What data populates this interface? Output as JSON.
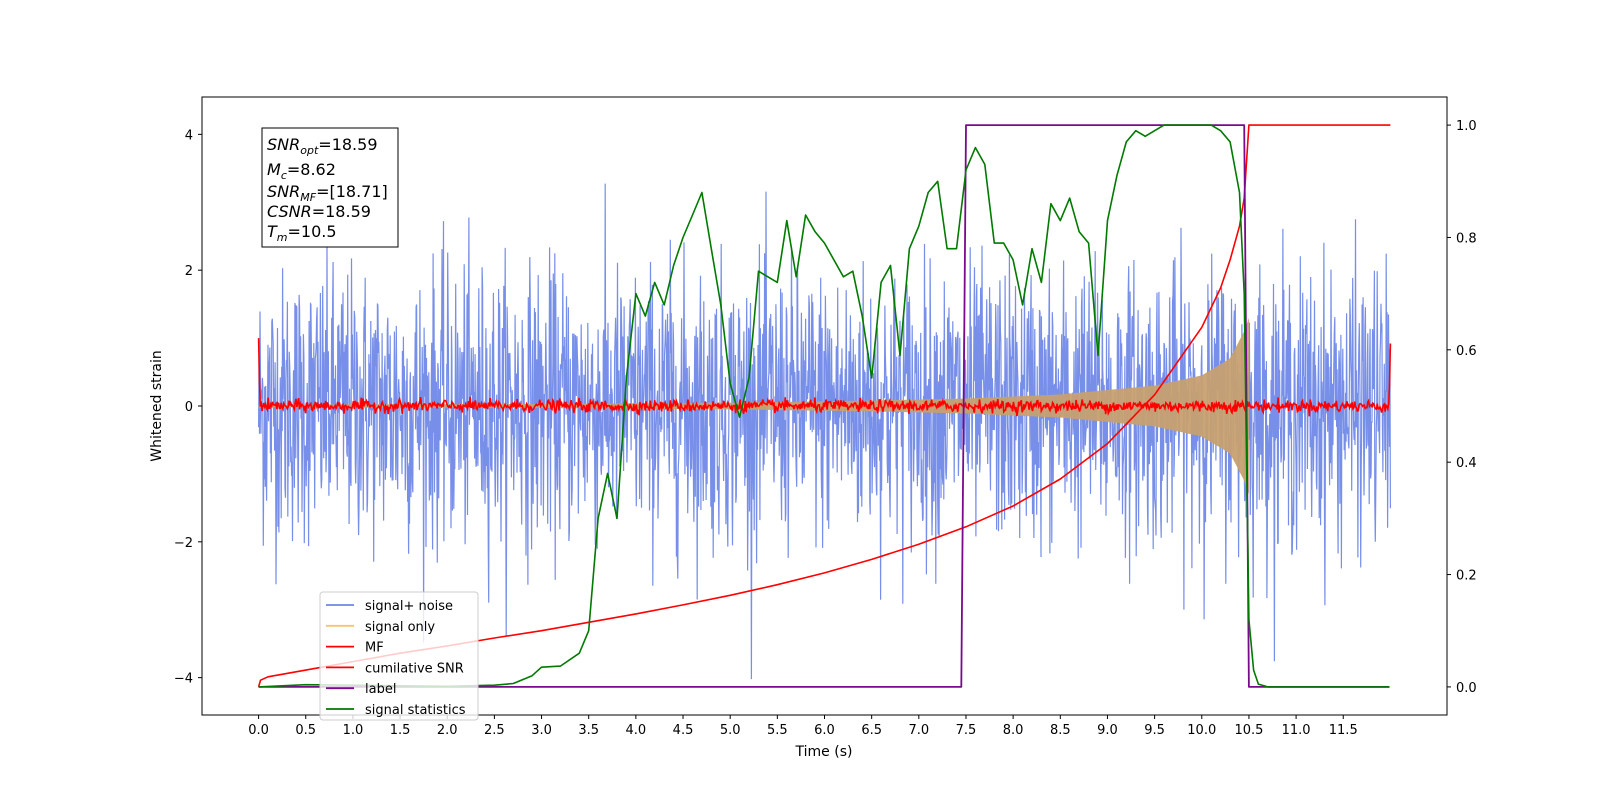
{
  "chart_data": {
    "type": "line",
    "xlabel": "Time (s)",
    "ylabel": "Whitened strain",
    "xlim": [
      -0.6,
      12.6
    ],
    "ylim_left": [
      -4.55,
      4.55
    ],
    "ylim_right": [
      -0.05,
      1.05
    ],
    "x_ticks": [
      "0.0",
      "0.5",
      "1.0",
      "1.5",
      "2.0",
      "2.5",
      "3.0",
      "3.5",
      "4.0",
      "4.5",
      "5.0",
      "5.5",
      "6.0",
      "6.5",
      "7.0",
      "7.5",
      "8.0",
      "8.5",
      "9.0",
      "9.5",
      "10.0",
      "10.5",
      "11.0",
      "11.5"
    ],
    "y_ticks_left": [
      "4",
      "2",
      "0",
      "−2",
      "−4"
    ],
    "y_ticks_right": [
      "1.0",
      "0.8",
      "0.6",
      "0.4",
      "0.2",
      "0.0"
    ],
    "annotation": {
      "lines": [
        {
          "base": "SNR",
          "sub": "opt",
          "value": "=18.59"
        },
        {
          "base": "M",
          "sub": "c",
          "value": "=8.62"
        },
        {
          "base": "SNR",
          "sub": "MF",
          "value": "=[18.71]"
        },
        {
          "base": "CSNR",
          "sub": "",
          "value": "=18.59"
        },
        {
          "base": "T",
          "sub": "m",
          "value": "=10.5"
        }
      ]
    },
    "legend": {
      "placement": "lower-left",
      "entries": [
        {
          "label": "signal+ noise",
          "color": "#6b86e6"
        },
        {
          "label": "signal only",
          "color": "#f5c46b"
        },
        {
          "label": "MF",
          "color": "#ff0000"
        },
        {
          "label": "cumilative SNR",
          "color": "#ff0000"
        },
        {
          "label": "label",
          "color": "#7a0a8c"
        },
        {
          "label": "signal statistics",
          "color": "#007a00"
        }
      ]
    },
    "series": [
      {
        "name": "signal+ noise",
        "axis": "left",
        "t_range": [
          0.0,
          12.0
        ],
        "noise_std": 1.0,
        "color": "#6b86e6"
      },
      {
        "name": "signal only",
        "axis": "left",
        "t_range": [
          0.0,
          10.5
        ],
        "envelope": [
          [
            0.0,
            0.02
          ],
          [
            3.0,
            0.03
          ],
          [
            5.0,
            0.05
          ],
          [
            6.5,
            0.08
          ],
          [
            7.5,
            0.11
          ],
          [
            8.5,
            0.17
          ],
          [
            9.5,
            0.3
          ],
          [
            10.0,
            0.45
          ],
          [
            10.3,
            0.7
          ],
          [
            10.45,
            1.1
          ],
          [
            10.5,
            1.3
          ]
        ],
        "color": "#c6a070"
      },
      {
        "name": "MF",
        "axis": "left",
        "t_range": [
          0.0,
          12.0
        ],
        "noise_std": 0.045,
        "edge_values": [
          1.0,
          0.92
        ],
        "color": "#ff0000"
      },
      {
        "name": "cumilative SNR",
        "axis": "right",
        "color": "#ff0000",
        "x": [
          0.0,
          0.02,
          0.1,
          0.5,
          1.0,
          1.5,
          2.0,
          2.5,
          3.0,
          3.5,
          4.0,
          4.5,
          5.0,
          5.5,
          6.0,
          6.5,
          7.0,
          7.5,
          8.0,
          8.5,
          9.0,
          9.5,
          10.0,
          10.2,
          10.3,
          10.4,
          10.45,
          10.5,
          12.0
        ],
        "y": [
          0.0,
          0.012,
          0.018,
          0.03,
          0.045,
          0.06,
          0.073,
          0.087,
          0.1,
          0.115,
          0.13,
          0.146,
          0.163,
          0.182,
          0.203,
          0.227,
          0.254,
          0.285,
          0.322,
          0.37,
          0.433,
          0.52,
          0.64,
          0.71,
          0.76,
          0.82,
          0.87,
          1.0,
          1.0
        ]
      },
      {
        "name": "label",
        "axis": "right",
        "color": "#7a0a8c",
        "x": [
          0.0,
          7.45,
          7.5,
          10.45,
          10.5,
          11.0,
          11.99
        ],
        "y": [
          0.0,
          0.0,
          1.0,
          1.0,
          0.0,
          0.0,
          0.0
        ]
      },
      {
        "name": "signal statistics",
        "axis": "right",
        "color": "#007a00",
        "x": [
          0.0,
          0.5,
          1.0,
          1.5,
          2.0,
          2.5,
          2.7,
          2.9,
          3.0,
          3.2,
          3.4,
          3.5,
          3.6,
          3.7,
          3.8,
          3.9,
          4.0,
          4.1,
          4.2,
          4.3,
          4.4,
          4.5,
          4.6,
          4.7,
          4.8,
          4.9,
          5.0,
          5.1,
          5.2,
          5.3,
          5.4,
          5.5,
          5.6,
          5.7,
          5.8,
          5.9,
          6.0,
          6.1,
          6.2,
          6.3,
          6.4,
          6.5,
          6.6,
          6.7,
          6.8,
          6.9,
          7.0,
          7.1,
          7.2,
          7.3,
          7.4,
          7.5,
          7.6,
          7.7,
          7.8,
          7.9,
          8.0,
          8.1,
          8.2,
          8.3,
          8.4,
          8.5,
          8.6,
          8.7,
          8.8,
          8.9,
          9.0,
          9.1,
          9.2,
          9.3,
          9.4,
          9.5,
          9.6,
          9.7,
          9.8,
          9.9,
          10.0,
          10.1,
          10.2,
          10.3,
          10.4,
          10.45,
          10.5,
          10.55,
          10.6,
          10.7,
          11.0,
          11.5,
          11.99
        ],
        "y": [
          0.0,
          0.004,
          0.003,
          0.002,
          0.001,
          0.003,
          0.006,
          0.02,
          0.035,
          0.037,
          0.06,
          0.1,
          0.3,
          0.38,
          0.3,
          0.55,
          0.7,
          0.66,
          0.72,
          0.68,
          0.75,
          0.8,
          0.84,
          0.88,
          0.78,
          0.68,
          0.54,
          0.48,
          0.55,
          0.74,
          0.73,
          0.72,
          0.83,
          0.73,
          0.84,
          0.81,
          0.79,
          0.76,
          0.73,
          0.74,
          0.66,
          0.55,
          0.72,
          0.75,
          0.59,
          0.78,
          0.82,
          0.88,
          0.9,
          0.78,
          0.78,
          0.92,
          0.96,
          0.93,
          0.79,
          0.79,
          0.76,
          0.68,
          0.78,
          0.72,
          0.86,
          0.83,
          0.87,
          0.81,
          0.79,
          0.59,
          0.83,
          0.91,
          0.97,
          0.99,
          0.98,
          0.99,
          1.0,
          1.0,
          1.0,
          1.0,
          1.0,
          1.0,
          0.99,
          0.97,
          0.88,
          0.7,
          0.12,
          0.03,
          0.005,
          0.0,
          0.0,
          0.0,
          0.0
        ]
      }
    ]
  }
}
